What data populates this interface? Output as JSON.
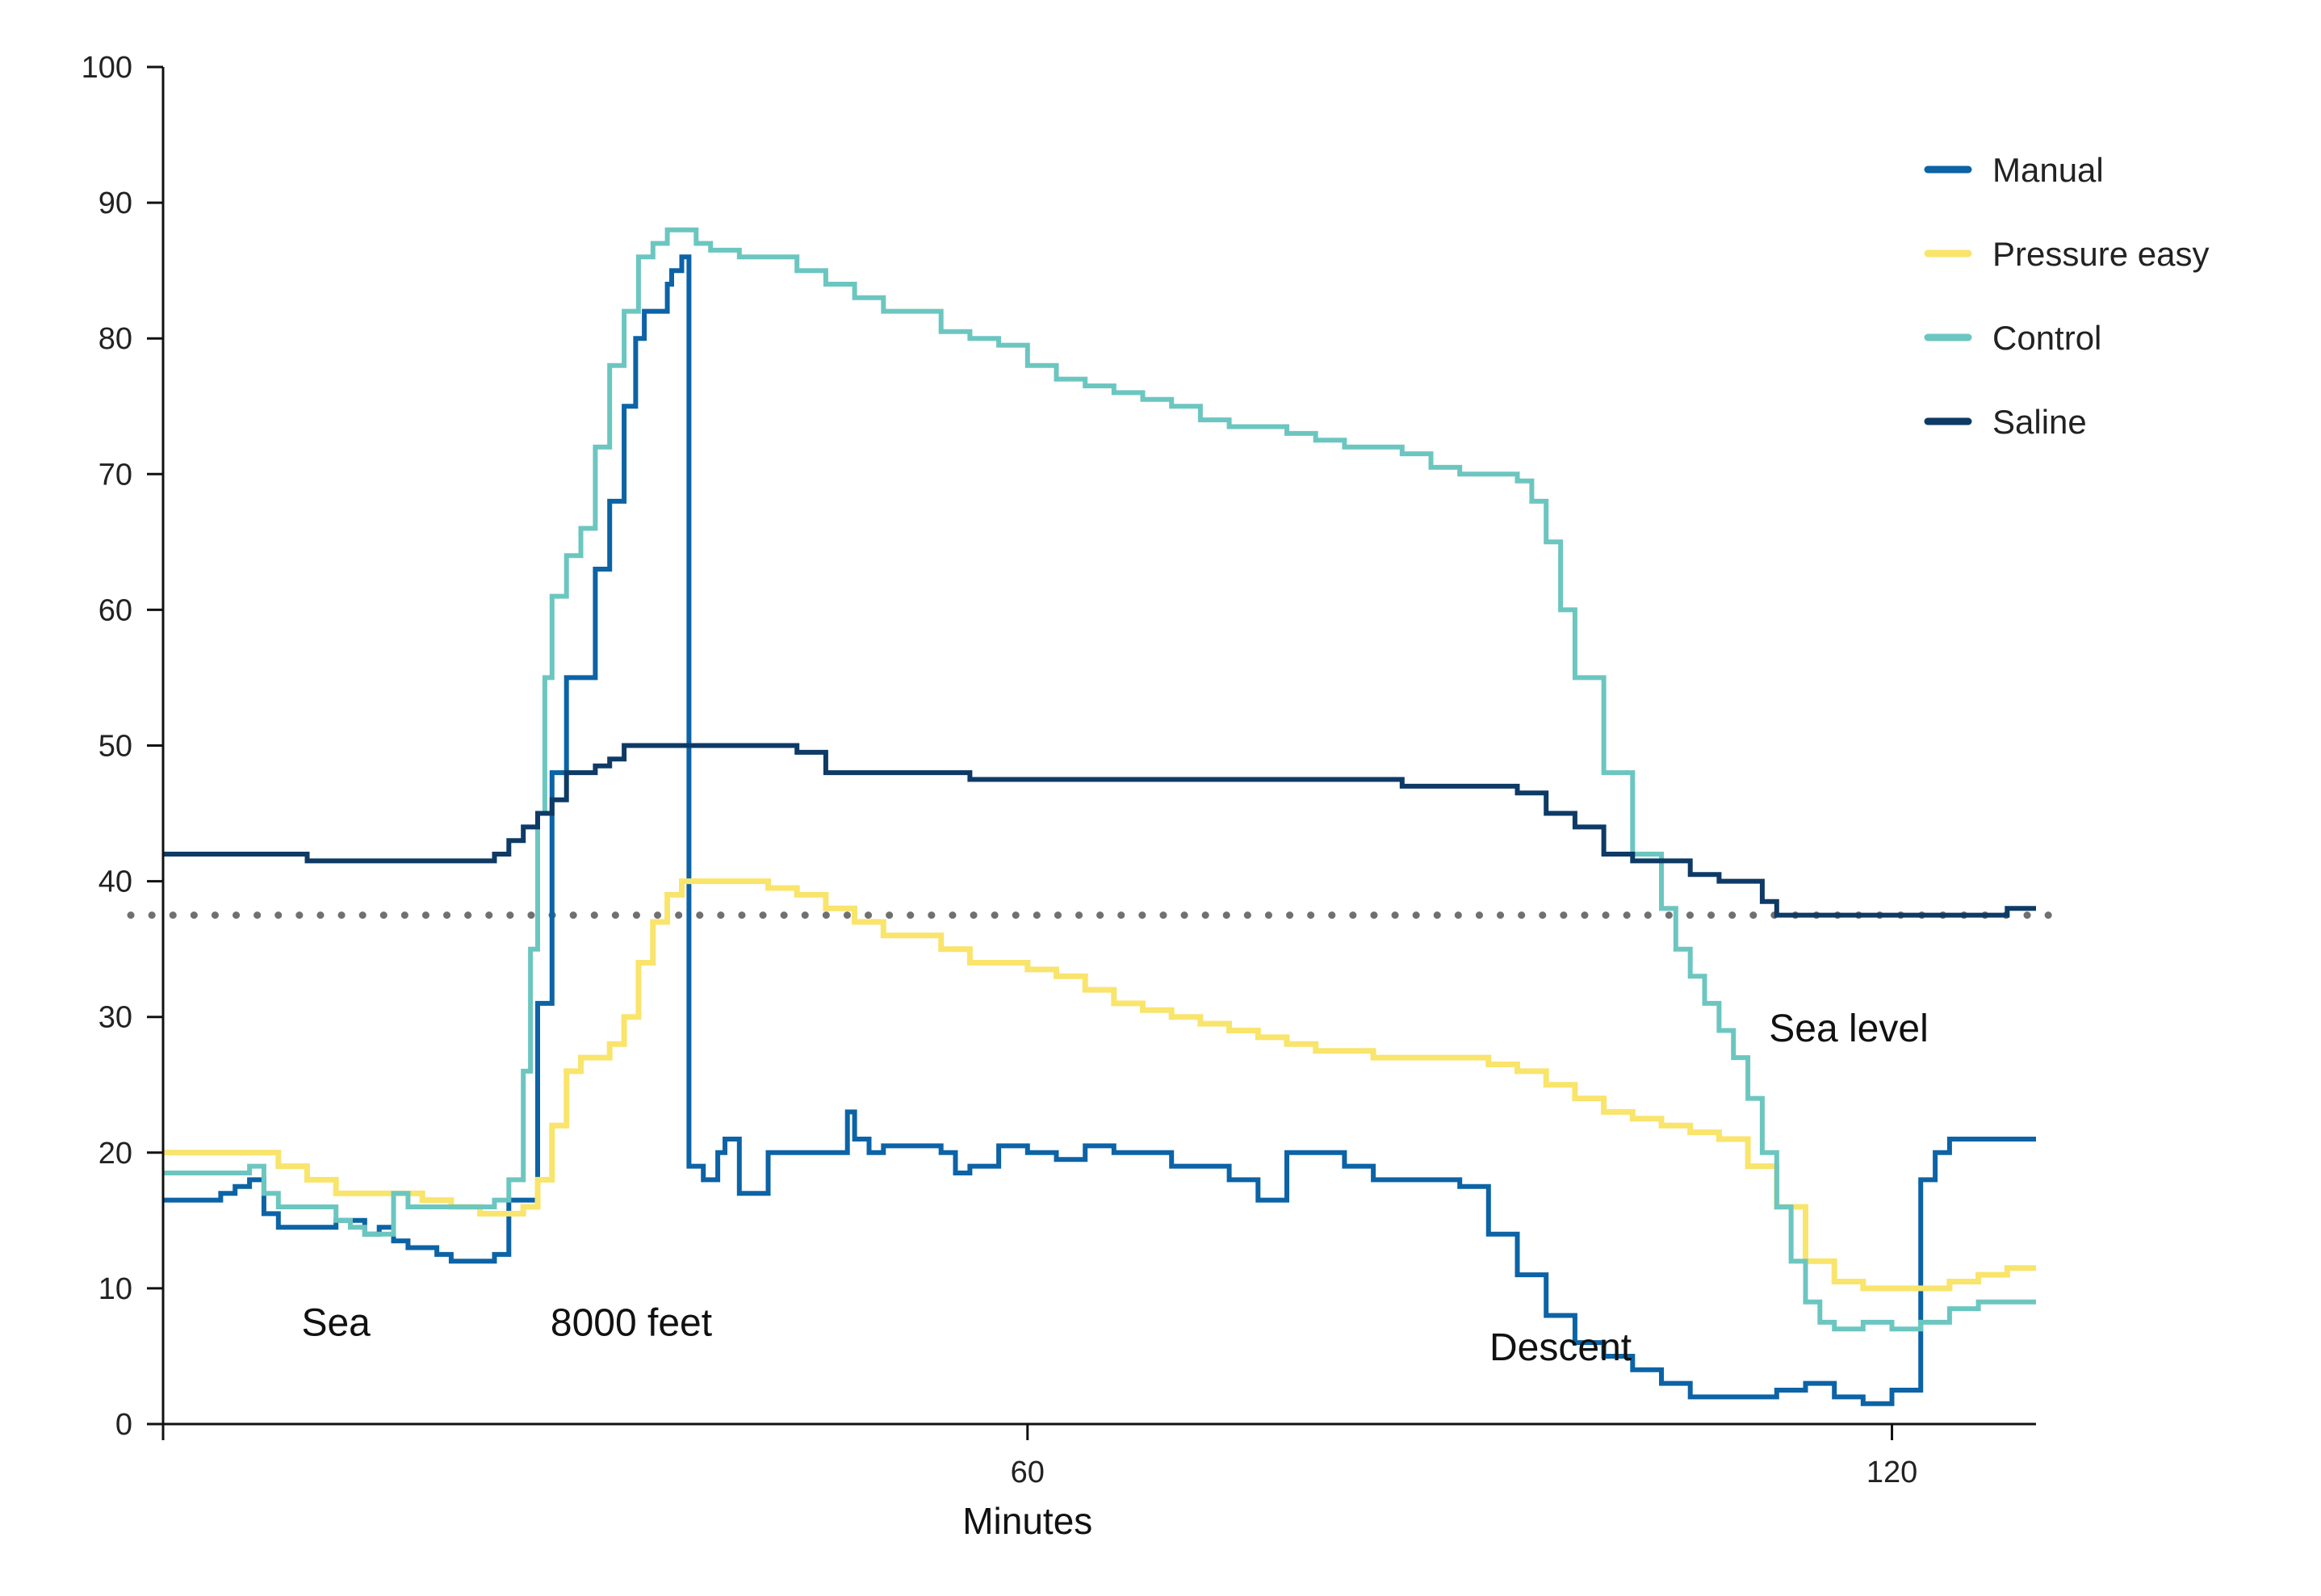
{
  "chart_data": {
    "type": "line",
    "title": "",
    "xlabel": "Minutes",
    "ylabel": "",
    "xlim": [
      0,
      130
    ],
    "ylim": [
      0,
      100
    ],
    "x_ticks": [
      60,
      120
    ],
    "y_ticks": [
      0,
      10,
      20,
      30,
      40,
      50,
      60,
      70,
      80,
      90,
      100
    ],
    "grid": false,
    "legend_position": "top-right",
    "reference_line": {
      "y": 37.5,
      "style": "dotted",
      "color": "#707070"
    },
    "annotations": [
      {
        "text": "Sea",
        "x": 12,
        "y": 6.5
      },
      {
        "text": "8000 feet",
        "x": 32.5,
        "y": 6.5
      },
      {
        "text": "Descent",
        "x": 97,
        "y": 4.7
      },
      {
        "text": "Sea level",
        "x": 117,
        "y": 28.2
      }
    ],
    "series": [
      {
        "name": "Manual",
        "color": "#0c63a6",
        "x": [
          0,
          3,
          4,
          5,
          6,
          7,
          8,
          10,
          12,
          14,
          15,
          16,
          17,
          19,
          20,
          22,
          23,
          24,
          26,
          27,
          28,
          30,
          31,
          32,
          32.8,
          33.4,
          35,
          35.3,
          36,
          36.5,
          37.5,
          38.5,
          39,
          40,
          42,
          43,
          45,
          47,
          47.5,
          48,
          49,
          50,
          52,
          54,
          55,
          56,
          58,
          60,
          62,
          64,
          66,
          68,
          70,
          72,
          74,
          76,
          78,
          80,
          82,
          84,
          86,
          88,
          90,
          92,
          94,
          96,
          98,
          100,
          102,
          104,
          106,
          108,
          110,
          112,
          114,
          116,
          118,
          120,
          122,
          123,
          124,
          125,
          126,
          128,
          130
        ],
        "y": [
          16.5,
          16.5,
          17,
          17.5,
          18,
          15.5,
          14.5,
          14.5,
          15,
          14,
          14.5,
          13.5,
          13,
          12.5,
          12,
          12,
          12.5,
          16.5,
          31,
          48,
          55,
          63,
          68,
          75,
          80,
          82,
          84,
          85,
          86,
          19,
          18,
          20,
          21,
          17,
          20,
          20,
          20,
          20,
          23,
          21,
          20,
          20.5,
          20.5,
          20,
          18.5,
          19,
          20.5,
          20,
          19.5,
          20.5,
          20,
          20,
          19,
          19,
          18,
          16.5,
          20,
          20,
          19,
          18,
          18,
          18,
          17.5,
          14,
          11,
          8,
          6,
          5,
          4,
          3,
          2,
          2,
          2,
          2.5,
          3,
          2,
          1.5,
          2.5,
          18,
          20,
          21,
          21,
          21,
          21,
          21
        ]
      },
      {
        "name": "Pressure easy",
        "color": "#f9e46c",
        "x": [
          0,
          2,
          4,
          6,
          8,
          10,
          12,
          14,
          16,
          18,
          20,
          22,
          24,
          25,
          26,
          27,
          28,
          29,
          30,
          31,
          32,
          33,
          34,
          35,
          36,
          38,
          40,
          42,
          44,
          46,
          48,
          50,
          52,
          54,
          56,
          58,
          60,
          62,
          64,
          66,
          68,
          70,
          72,
          74,
          76,
          78,
          80,
          82,
          84,
          86,
          88,
          90,
          92,
          94,
          96,
          98,
          100,
          102,
          104,
          106,
          108,
          110,
          112,
          114,
          116,
          118,
          120,
          122,
          124,
          126,
          128,
          130
        ],
        "y": [
          20,
          20,
          20,
          20,
          19,
          18,
          17,
          17,
          17,
          16.5,
          16,
          15.5,
          15.5,
          16,
          18,
          22,
          26,
          27,
          27,
          28,
          30,
          34,
          37,
          39,
          40,
          40,
          40,
          39.5,
          39,
          38,
          37,
          36,
          36,
          35,
          34,
          34,
          33.5,
          33,
          32,
          31,
          30.5,
          30,
          29.5,
          29,
          28.5,
          28,
          27.5,
          27.5,
          27,
          27,
          27,
          27,
          26.5,
          26,
          25,
          24,
          23,
          22.5,
          22,
          21.5,
          21,
          19,
          16,
          12,
          10.5,
          10,
          10,
          10,
          10.5,
          11,
          11.5,
          11.5
        ]
      },
      {
        "name": "Control",
        "color": "#6cc6c0",
        "x": [
          0,
          3,
          6,
          7,
          8,
          10,
          12,
          13,
          14,
          15,
          16,
          17,
          18,
          20,
          22,
          23,
          24,
          25,
          25.5,
          26,
          26.5,
          27,
          28,
          29,
          30,
          31,
          32,
          33,
          34,
          35,
          36,
          37,
          38,
          40,
          42,
          44,
          46,
          48,
          50,
          52,
          54,
          56,
          58,
          60,
          62,
          64,
          66,
          68,
          70,
          72,
          74,
          76,
          78,
          80,
          82,
          84,
          86,
          88,
          90,
          92,
          94,
          95,
          96,
          97,
          98,
          100,
          102,
          104,
          105,
          106,
          107,
          108,
          109,
          110,
          111,
          112,
          113,
          114,
          115,
          116,
          118,
          120,
          122,
          124,
          126,
          128,
          130
        ],
        "y": [
          18.5,
          18.5,
          19,
          17,
          16,
          16,
          15,
          14.5,
          14,
          14,
          17,
          16,
          16,
          16,
          16,
          16.5,
          18,
          26,
          35,
          45,
          55,
          61,
          64,
          66,
          72,
          78,
          82,
          86,
          87,
          88,
          88,
          87,
          86.5,
          86,
          86,
          85,
          84,
          83,
          82,
          82,
          80.5,
          80,
          79.5,
          78,
          77,
          76.5,
          76,
          75.5,
          75,
          74,
          73.5,
          73.5,
          73,
          72.5,
          72,
          72,
          71.5,
          70.5,
          70,
          70,
          69.5,
          68,
          65,
          60,
          55,
          48,
          42,
          38,
          35,
          33,
          31,
          29,
          27,
          24,
          20,
          16,
          12,
          9,
          7.5,
          7,
          7.5,
          7,
          7.5,
          8.5,
          9,
          9,
          9
        ]
      },
      {
        "name": "Saline",
        "color": "#0e3a66",
        "x": [
          0,
          3,
          4,
          6,
          8,
          10,
          14,
          16,
          18,
          20,
          22,
          23,
          24,
          25,
          26,
          27,
          28,
          29,
          30,
          31,
          32,
          34,
          36,
          38,
          40,
          42,
          44,
          46,
          48,
          50,
          52,
          54,
          56,
          58,
          60,
          62,
          64,
          66,
          68,
          70,
          72,
          74,
          76,
          78,
          80,
          82,
          84,
          86,
          88,
          90,
          92,
          94,
          96,
          98,
          100,
          102,
          104,
          106,
          108,
          110,
          111,
          112,
          113,
          114,
          116,
          118,
          120,
          122,
          124,
          126,
          128,
          130
        ],
        "y": [
          42,
          42,
          42,
          42,
          42,
          41.5,
          41.5,
          41.5,
          41.5,
          41.5,
          41.5,
          42,
          43,
          44,
          45,
          46,
          48,
          48,
          48.5,
          49,
          50,
          50,
          50,
          50,
          50,
          50,
          49.5,
          48,
          48,
          48,
          48,
          48,
          47.5,
          47.5,
          47.5,
          47.5,
          47.5,
          47.5,
          47.5,
          47.5,
          47.5,
          47.5,
          47.5,
          47.5,
          47.5,
          47.5,
          47.5,
          47,
          47,
          47,
          47,
          46.5,
          45,
          44,
          42,
          41.5,
          41.5,
          40.5,
          40,
          40,
          38.5,
          37.5,
          37.5,
          37.5,
          37.5,
          37.5,
          37.5,
          37.5,
          37.5,
          37.5,
          38,
          38
        ]
      }
    ]
  }
}
